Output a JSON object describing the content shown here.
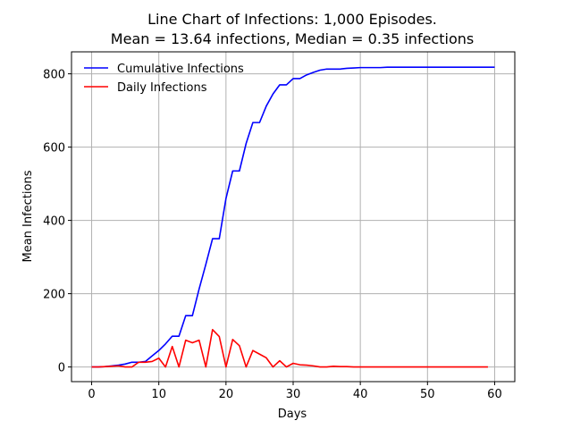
{
  "chart_data": {
    "type": "line",
    "title_line1": "Line Chart of Infections: 1,000 Episodes.",
    "title_line2": "Mean = 13.64 infections, Median = 0.35 infections",
    "xlabel": "Days",
    "ylabel": "Mean Infections",
    "xlim": [
      -3,
      63
    ],
    "ylim": [
      -40,
      860
    ],
    "xticks": [
      0,
      10,
      20,
      30,
      40,
      50,
      60
    ],
    "yticks": [
      0,
      200,
      400,
      600,
      800
    ],
    "grid": true,
    "legend_position": "top-left",
    "series": [
      {
        "name": "Cumulative Infections",
        "color": "#0000ff",
        "x": [
          0,
          1,
          2,
          3,
          4,
          5,
          6,
          7,
          8,
          9,
          10,
          11,
          12,
          13,
          14,
          15,
          16,
          17,
          18,
          19,
          20,
          21,
          22,
          23,
          24,
          25,
          26,
          27,
          28,
          29,
          30,
          31,
          32,
          33,
          34,
          35,
          36,
          37,
          38,
          39,
          40,
          41,
          42,
          43,
          44,
          45,
          46,
          47,
          48,
          49,
          50,
          51,
          52,
          53,
          54,
          55,
          56,
          57,
          58,
          59,
          60
        ],
        "values": [
          0,
          0,
          1,
          3,
          5,
          8,
          13,
          13,
          15,
          30,
          45,
          63,
          84,
          84,
          140,
          140,
          213,
          280,
          350,
          350,
          460,
          535,
          535,
          610,
          667,
          667,
          712,
          745,
          770,
          770,
          787,
          787,
          797,
          804,
          810,
          813,
          813,
          813,
          815,
          816,
          817,
          817,
          817,
          817,
          818,
          818,
          818,
          818,
          818,
          818,
          818,
          818,
          818,
          818,
          818,
          818,
          818,
          818,
          818,
          818,
          818
        ]
      },
      {
        "name": "Daily Infections",
        "color": "#ff0000",
        "x": [
          0,
          1,
          2,
          3,
          4,
          5,
          6,
          7,
          8,
          9,
          10,
          11,
          12,
          13,
          14,
          15,
          16,
          17,
          18,
          19,
          20,
          21,
          22,
          23,
          24,
          25,
          26,
          27,
          28,
          29,
          30,
          31,
          32,
          33,
          34,
          35,
          36,
          37,
          38,
          39,
          40,
          41,
          42,
          43,
          44,
          45,
          46,
          47,
          48,
          49,
          50,
          51,
          52,
          53,
          54,
          55,
          56,
          57,
          58,
          59
        ],
        "values": [
          0,
          0,
          1,
          2,
          3,
          0,
          0,
          13,
          13,
          15,
          24,
          0,
          56,
          0,
          73,
          66,
          73,
          0,
          102,
          83,
          0,
          75,
          58,
          0,
          45,
          35,
          25,
          0,
          17,
          0,
          10,
          6,
          5,
          3,
          0,
          0,
          2,
          1,
          1,
          0,
          0,
          0,
          0,
          0,
          0,
          0,
          0,
          0,
          0,
          0,
          0,
          0,
          0,
          0,
          0,
          0,
          0,
          0,
          0,
          0
        ]
      }
    ]
  }
}
